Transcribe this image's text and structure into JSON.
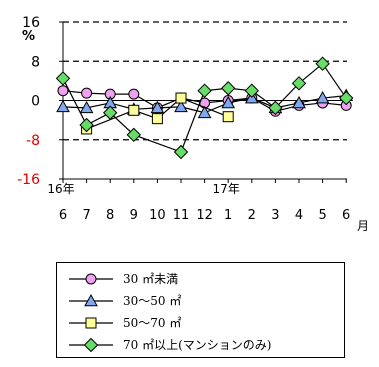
{
  "chart_data": {
    "type": "line",
    "y_unit": "%",
    "ylim": [
      -16,
      16
    ],
    "y_ticks": [
      {
        "value": 16,
        "label": "16",
        "color": "#000000"
      },
      {
        "value": 8,
        "label": "8",
        "color": "#000000"
      },
      {
        "value": 0,
        "label": "0",
        "color": "#000000"
      },
      {
        "value": -8,
        "label": "-8",
        "color": "#e00000"
      },
      {
        "value": -16,
        "label": "-16",
        "color": "#e00000"
      }
    ],
    "dashed_gridlines": [
      16,
      8,
      -8
    ],
    "solid_zero_line": true,
    "year_labels": [
      {
        "index": 0,
        "label": "16年"
      },
      {
        "index": 7,
        "label": "17年"
      }
    ],
    "categories": [
      "6",
      "7",
      "8",
      "9",
      "10",
      "11",
      "12",
      "1",
      "2",
      "3",
      "4",
      "5",
      "6"
    ],
    "x_unit": "月",
    "series": [
      {
        "name": "30 ㎡未満",
        "marker": "circle",
        "fill": "#f0a0f0",
        "values": [
          2.0,
          1.5,
          1.3,
          1.3,
          -1.5,
          0.5,
          -0.5,
          0.0,
          0.5,
          -2.2,
          -1.0,
          -0.5,
          -1.0
        ]
      },
      {
        "name": "30～50 ㎡",
        "marker": "triangle",
        "fill": "#80a8f0",
        "values": [
          -1.3,
          -1.5,
          -0.5,
          -1.8,
          -1.5,
          -1.3,
          -2.5,
          -0.5,
          0.5,
          -1.5,
          -0.5,
          0.5,
          1.0
        ]
      },
      {
        "name": "50～70 ㎡",
        "marker": "square",
        "fill": "#ffff99",
        "values": [
          null,
          -5.8,
          null,
          -2.0,
          -3.7,
          0.5,
          null,
          -3.3,
          null,
          null,
          null,
          null,
          null
        ]
      },
      {
        "name": "70 ㎡以上(マンションのみ)",
        "marker": "diamond",
        "fill": "#66dd66",
        "values": [
          4.5,
          -5.0,
          -2.5,
          -7.0,
          null,
          -10.5,
          2.0,
          2.5,
          2.0,
          -1.5,
          3.5,
          7.5,
          0.5
        ]
      }
    ]
  }
}
